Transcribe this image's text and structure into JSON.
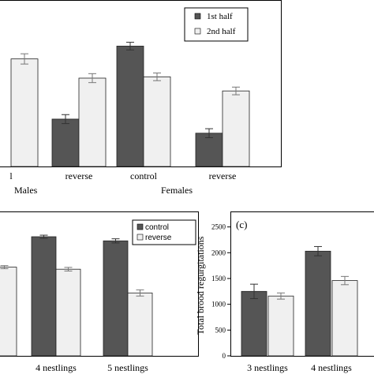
{
  "chart_data": [
    {
      "type": "bar",
      "categories": [
        "control",
        "reverse",
        "control",
        "reverse"
      ],
      "category_labels": [
        "l",
        "reverse",
        "control",
        "reverse"
      ],
      "groups": [
        "Males",
        "Females"
      ],
      "series": [
        {
          "name": "1st half",
          "values": [
            null,
            3.7,
            9.4,
            2.6
          ],
          "errors": [
            null,
            0.35,
            0.3,
            0.35
          ]
        },
        {
          "name": "2nd half",
          "values": [
            8.4,
            6.9,
            7.0,
            5.9
          ],
          "errors": [
            0.4,
            0.35,
            0.3,
            0.3
          ]
        }
      ],
      "ylim": [
        0,
        13
      ],
      "legend_position": "top-right",
      "colors": {
        "series1": "#555555",
        "series2": "#f0f0f0"
      }
    },
    {
      "type": "bar",
      "categories": [
        "nestlings",
        "4 nestlings",
        "5 nestlings"
      ],
      "category_labels": [
        "ngs",
        "4 nestlings",
        "5 nestlings"
      ],
      "series": [
        {
          "name": "control",
          "values": [
            null,
            2310,
            2230
          ],
          "errors": [
            null,
            30,
            40
          ]
        },
        {
          "name": "reverse",
          "values": [
            1720,
            1680,
            1220
          ],
          "errors": [
            30,
            35,
            60
          ]
        }
      ],
      "ylim": [
        0,
        2800
      ],
      "legend_position": "top-right",
      "colors": {
        "series1": "#555555",
        "series2": "#f0f0f0"
      }
    },
    {
      "type": "bar",
      "panel_label": "(c)",
      "ylabel": "Total brood regurgitations",
      "categories": [
        "3 nestlings",
        "4 nestlings"
      ],
      "category_labels": [
        "3 nestlings",
        "4 nestlings"
      ],
      "yticks": [
        0,
        500,
        1000,
        1500,
        2000,
        2500
      ],
      "series": [
        {
          "name": "control",
          "values": [
            1250,
            2030
          ],
          "errors": [
            140,
            90
          ]
        },
        {
          "name": "reverse",
          "values": [
            1160,
            1460
          ],
          "errors": [
            60,
            80
          ]
        }
      ],
      "ylim": [
        0,
        2800
      ],
      "colors": {
        "series1": "#555555",
        "series2": "#f0f0f0"
      }
    }
  ]
}
